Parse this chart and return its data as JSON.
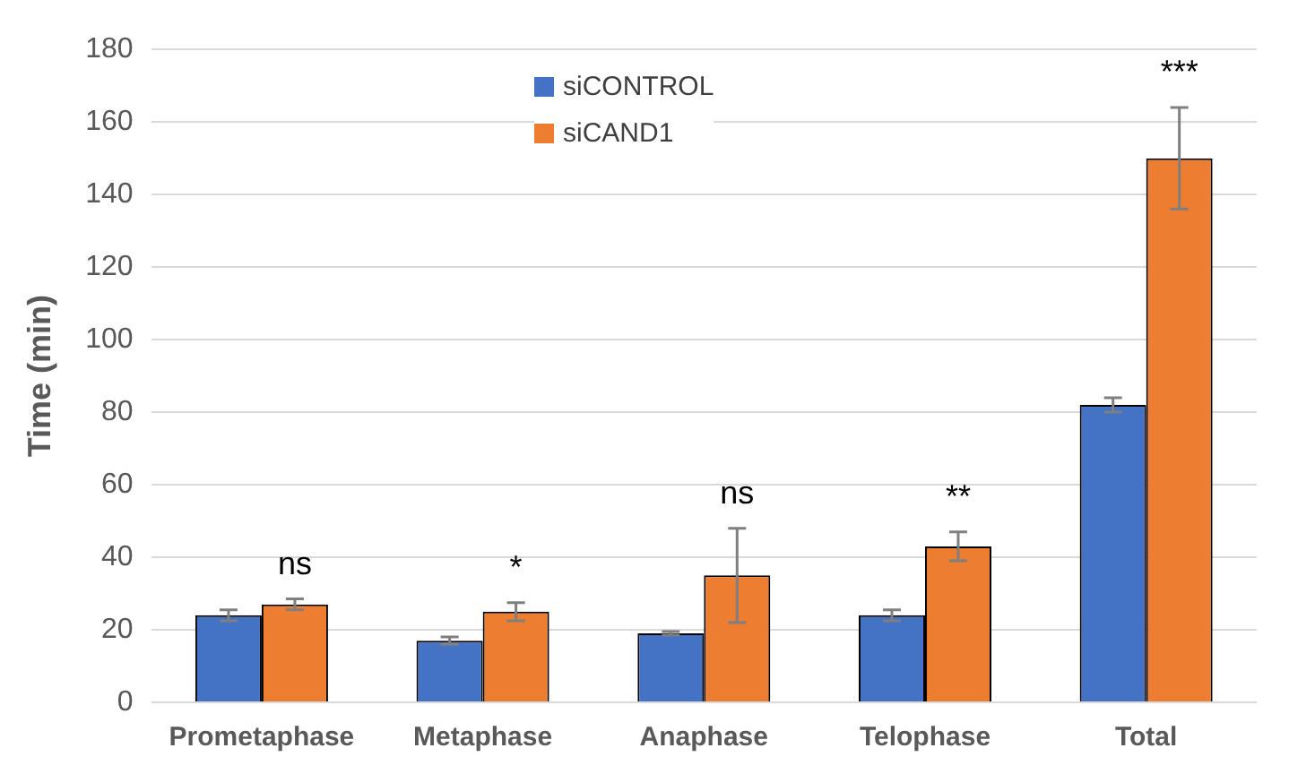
{
  "chart_data": {
    "type": "bar",
    "ylabel": "Time (min)",
    "categories": [
      "Prometaphase",
      "Metaphase",
      "Anaphase",
      "Telophase",
      "Total"
    ],
    "series": [
      {
        "name": "siCONTROL",
        "color": "#4472c4",
        "values": [
          24,
          17,
          19,
          24,
          82
        ],
        "errors": [
          1.5,
          1,
          0.5,
          1.5,
          2
        ]
      },
      {
        "name": "siCAND1",
        "color": "#ed7d31",
        "values": [
          27,
          25,
          35,
          43,
          150
        ],
        "errors": [
          1.5,
          2.5,
          13,
          4,
          14
        ]
      }
    ],
    "ylim": [
      0,
      180
    ],
    "yticks": [
      0,
      20,
      40,
      60,
      80,
      100,
      120,
      140,
      160,
      180
    ],
    "grid": "y",
    "legend": "top",
    "annotations": [
      "ns",
      "*",
      "ns",
      "**",
      "***"
    ]
  }
}
